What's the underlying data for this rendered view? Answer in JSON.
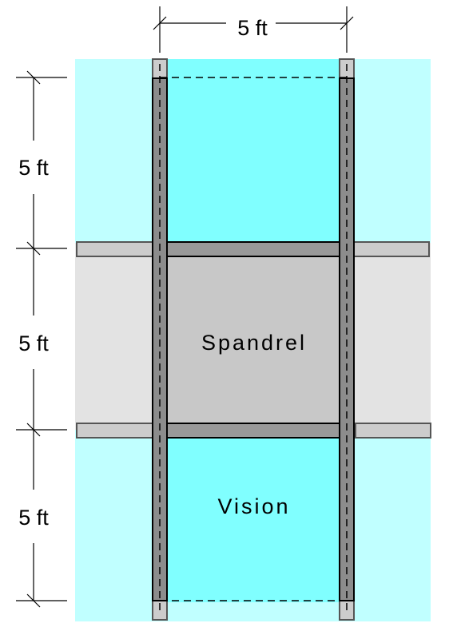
{
  "dimensions": {
    "top_width": "5 ft",
    "left_upper": "5 ft",
    "left_middle": "5 ft",
    "left_lower": "5 ft"
  },
  "panels": {
    "spandrel": "Spandrel",
    "vision": "Vision"
  },
  "colors": {
    "vision_glass": "#80FFFF",
    "vision_glass_light": "#C0FFFF",
    "spandrel_panel": "#C8C8C8",
    "spandrel_light": "#E3E3E3",
    "mullion": "#8C8C8C",
    "transom_bar": "#999999",
    "mullion_cap": "#CCCCCC",
    "outline": "#000000"
  }
}
